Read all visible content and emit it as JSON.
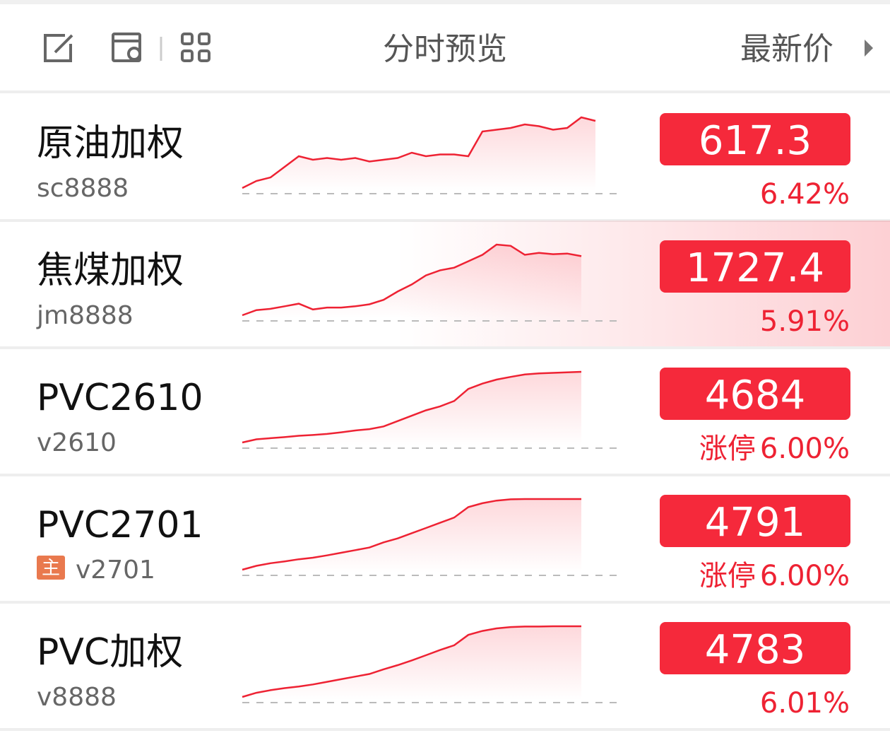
{
  "header": {
    "title": "分时预览",
    "sort_label": "最新价"
  },
  "rows": [
    {
      "name": "原油加权",
      "code": "sc8888",
      "price": "617.3",
      "change": "6.42%",
      "spark": [
        580,
        584,
        586,
        592,
        598,
        596,
        597,
        596,
        597,
        595,
        596,
        597,
        600,
        598,
        599,
        599,
        598,
        612,
        613,
        614,
        616,
        615,
        613,
        614,
        620,
        618
      ]
    },
    {
      "name": "焦煤加权",
      "code": "jm8888",
      "price": "1727.4",
      "change": "5.91%",
      "highlight": true,
      "spark": [
        1628,
        1636,
        1638,
        1642,
        1646,
        1637,
        1640,
        1640,
        1642,
        1645,
        1652,
        1665,
        1676,
        1690,
        1698,
        1702,
        1712,
        1722,
        1738,
        1736,
        1722,
        1725,
        1723,
        1724,
        1720
      ]
    },
    {
      "name": "PVC2610",
      "code": "v2610",
      "price": "4684",
      "limit": "涨停",
      "change": "6.00%",
      "name_color": "#a444d8",
      "spark": [
        4420,
        4432,
        4436,
        4440,
        4445,
        4448,
        4452,
        4458,
        4465,
        4470,
        4480,
        4500,
        4520,
        4540,
        4555,
        4575,
        4620,
        4640,
        4655,
        4665,
        4674,
        4678,
        4680,
        4682,
        4684
      ]
    },
    {
      "name": "PVC2701",
      "code": "v2701",
      "badge": "主",
      "price": "4791",
      "limit": "涨停",
      "change": "6.00%",
      "spark": [
        4520,
        4535,
        4545,
        4552,
        4560,
        4566,
        4575,
        4585,
        4595,
        4605,
        4625,
        4640,
        4660,
        4680,
        4700,
        4720,
        4760,
        4775,
        4785,
        4790,
        4791,
        4791,
        4791,
        4791,
        4791
      ]
    },
    {
      "name": "PVC加权",
      "code": "v8888",
      "price": "4783",
      "change": "6.01%",
      "spark": [
        4512,
        4528,
        4538,
        4546,
        4552,
        4560,
        4570,
        4580,
        4590,
        4600,
        4618,
        4634,
        4652,
        4672,
        4692,
        4710,
        4750,
        4765,
        4775,
        4780,
        4782,
        4782,
        4783,
        4783,
        4783
      ]
    }
  ]
}
